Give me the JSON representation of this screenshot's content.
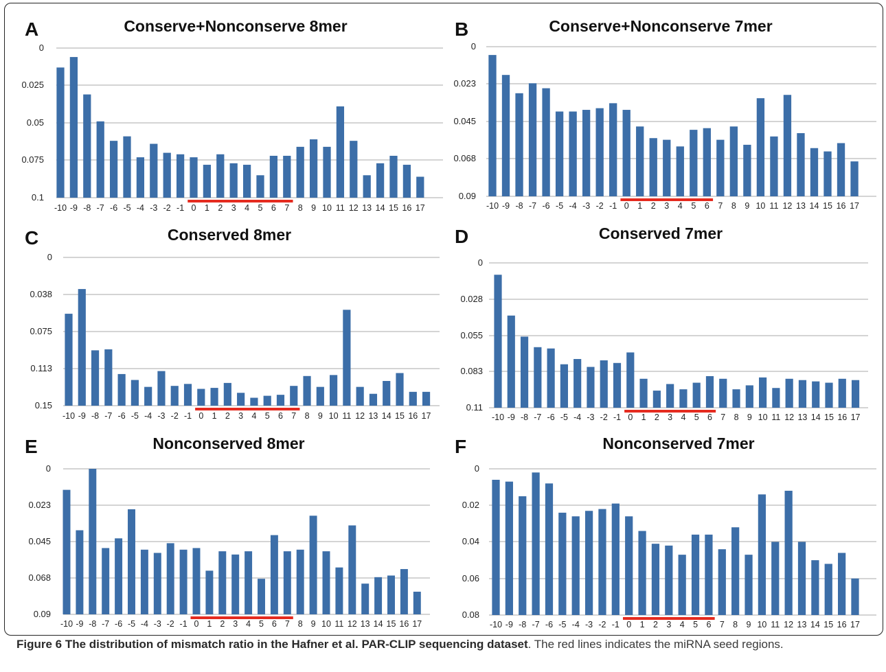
{
  "caption": {
    "label": "Figure 6 The distribution of mismatch ratio in the Hafner et al. PAR-CLIP sequencing dataset",
    "text": ". The red lines indicates the miRNA seed regions."
  },
  "colors": {
    "bar": "#3c6ea8",
    "seed_line": "#e52b1f",
    "grid": "#a8a8a8"
  },
  "chart_data": [
    {
      "panel": "A",
      "type": "bar",
      "title": "Conserve+Nonconserve 8mer",
      "categories": [
        "-10",
        "-9",
        "-8",
        "-7",
        "-6",
        "-5",
        "-4",
        "-3",
        "-2",
        "-1",
        "0",
        "1",
        "2",
        "3",
        "4",
        "5",
        "6",
        "7",
        "8",
        "9",
        "10",
        "11",
        "12",
        "13",
        "14",
        "15",
        "16",
        "17"
      ],
      "values": [
        0.087,
        0.094,
        0.069,
        0.051,
        0.038,
        0.041,
        0.027,
        0.036,
        0.03,
        0.029,
        0.027,
        0.022,
        0.029,
        0.023,
        0.022,
        0.015,
        0.028,
        0.028,
        0.034,
        0.039,
        0.034,
        0.061,
        0.038,
        0.015,
        0.023,
        0.028,
        0.022,
        0.014
      ],
      "yticks": [
        "0",
        "0.025",
        "0.05",
        "0.075",
        "0.1"
      ],
      "ylim": [
        0,
        0.1
      ],
      "seed_region": [
        "0",
        "7"
      ],
      "grid": true
    },
    {
      "panel": "B",
      "type": "bar",
      "title": "Conserve+Nonconserve 7mer",
      "categories": [
        "-10",
        "-9",
        "-8",
        "-7",
        "-6",
        "-5",
        "-4",
        "-3",
        "-2",
        "-1",
        "0",
        "1",
        "2",
        "3",
        "4",
        "5",
        "6",
        "7",
        "8",
        "9",
        "10",
        "11",
        "12",
        "13",
        "14",
        "15",
        "16",
        "17"
      ],
      "values": [
        0.085,
        0.073,
        0.062,
        0.068,
        0.065,
        0.051,
        0.051,
        0.052,
        0.053,
        0.056,
        0.052,
        0.042,
        0.035,
        0.034,
        0.03,
        0.04,
        0.041,
        0.034,
        0.042,
        0.031,
        0.059,
        0.036,
        0.061,
        0.038,
        0.029,
        0.027,
        0.032,
        0.021
      ],
      "yticks": [
        "0",
        "0.023",
        "0.045",
        "0.068",
        "0.09"
      ],
      "ylim": [
        0,
        0.09
      ],
      "seed_region": [
        "0",
        "6"
      ],
      "grid": true
    },
    {
      "panel": "C",
      "type": "bar",
      "title": "Conserved 8mer",
      "categories": [
        "-10",
        "-9",
        "-8",
        "-7",
        "-6",
        "-5",
        "-4",
        "-3",
        "-2",
        "-1",
        "0",
        "1",
        "2",
        "3",
        "4",
        "5",
        "6",
        "7",
        "8",
        "9",
        "10",
        "11",
        "12",
        "13",
        "14",
        "15",
        "16",
        "17"
      ],
      "values": [
        0.093,
        0.118,
        0.056,
        0.057,
        0.032,
        0.026,
        0.019,
        0.035,
        0.02,
        0.022,
        0.017,
        0.018,
        0.023,
        0.013,
        0.008,
        0.01,
        0.011,
        0.02,
        0.03,
        0.019,
        0.031,
        0.097,
        0.019,
        0.012,
        0.025,
        0.033,
        0.014,
        0.014
      ],
      "yticks": [
        "0",
        "0.038",
        "0.075",
        "0.113",
        "0.15"
      ],
      "ylim": [
        0,
        0.15
      ],
      "seed_region": [
        "0",
        "7"
      ],
      "grid": true
    },
    {
      "panel": "D",
      "type": "bar",
      "title": "Conserved 7mer",
      "categories": [
        "-10",
        "-9",
        "-8",
        "-7",
        "-6",
        "-5",
        "-4",
        "-3",
        "-2",
        "-1",
        "0",
        "1",
        "2",
        "3",
        "4",
        "5",
        "6",
        "7",
        "8",
        "9",
        "10",
        "11",
        "12",
        "13",
        "14",
        "15",
        "16",
        "17"
      ],
      "values": [
        0.101,
        0.07,
        0.054,
        0.046,
        0.045,
        0.033,
        0.037,
        0.031,
        0.036,
        0.034,
        0.042,
        0.022,
        0.013,
        0.018,
        0.014,
        0.019,
        0.024,
        0.022,
        0.014,
        0.017,
        0.023,
        0.015,
        0.022,
        0.021,
        0.02,
        0.019,
        0.022,
        0.021
      ],
      "yticks": [
        "0",
        "0.028",
        "0.055",
        "0.083",
        "0.11"
      ],
      "ylim": [
        0,
        0.11
      ],
      "seed_region": [
        "0",
        "6"
      ],
      "grid": true
    },
    {
      "panel": "E",
      "type": "bar",
      "title": "Nonconserved 8mer",
      "categories": [
        "-10",
        "-9",
        "-8",
        "-7",
        "-6",
        "-5",
        "-4",
        "-3",
        "-2",
        "-1",
        "0",
        "1",
        "2",
        "3",
        "4",
        "5",
        "6",
        "7",
        "8",
        "9",
        "10",
        "11",
        "12",
        "13",
        "14",
        "15",
        "16",
        "17"
      ],
      "values": [
        0.077,
        0.052,
        0.09,
        0.041,
        0.047,
        0.065,
        0.04,
        0.038,
        0.044,
        0.04,
        0.041,
        0.027,
        0.039,
        0.037,
        0.039,
        0.022,
        0.049,
        0.039,
        0.04,
        0.061,
        0.039,
        0.029,
        0.055,
        0.019,
        0.023,
        0.024,
        0.028,
        0.014
      ],
      "yticks": [
        "0",
        "0.023",
        "0.045",
        "0.068",
        "0.09"
      ],
      "ylim": [
        0,
        0.09
      ],
      "seed_region": [
        "0",
        "7"
      ],
      "grid": true
    },
    {
      "panel": "F",
      "type": "bar",
      "title": "Nonconserved 7mer",
      "categories": [
        "-10",
        "-9",
        "-8",
        "-7",
        "-6",
        "-5",
        "-4",
        "-3",
        "-2",
        "-1",
        "0",
        "1",
        "2",
        "3",
        "4",
        "5",
        "6",
        "7",
        "8",
        "9",
        "10",
        "11",
        "12",
        "13",
        "14",
        "15",
        "16",
        "17"
      ],
      "values": [
        0.074,
        0.073,
        0.065,
        0.078,
        0.072,
        0.056,
        0.054,
        0.057,
        0.058,
        0.061,
        0.054,
        0.046,
        0.039,
        0.038,
        0.033,
        0.044,
        0.044,
        0.036,
        0.048,
        0.033,
        0.066,
        0.04,
        0.068,
        0.04,
        0.03,
        0.028,
        0.034,
        0.02
      ],
      "yticks": [
        "0",
        "0.02",
        "0.04",
        "0.06",
        "0.08"
      ],
      "ylim": [
        0,
        0.08
      ],
      "seed_region": [
        "0",
        "6"
      ],
      "grid": true
    }
  ]
}
